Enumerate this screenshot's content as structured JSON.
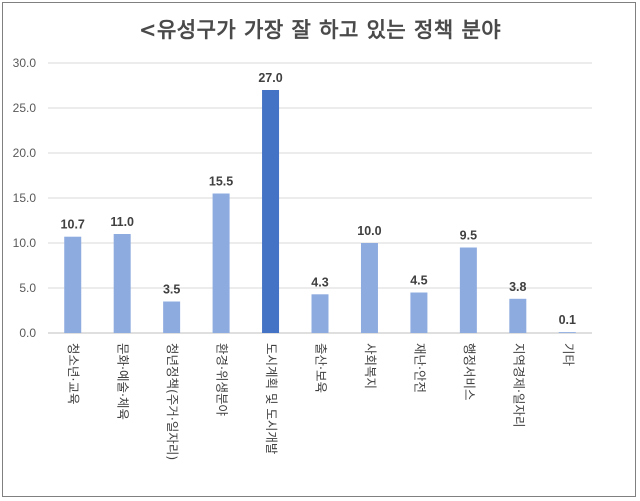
{
  "chart_data": {
    "type": "bar",
    "title": "<유성구가 가장 잘 하고 있는 정책 분야",
    "categories": [
      "청소년·교육",
      "문화·예술·체육",
      "청년정책(주거·일자리)",
      "환경·위생분야",
      "도시계획 및 도시개발",
      "출산·보육",
      "사회복지",
      "재난·안전",
      "행정서비스",
      "지역경제·일자리",
      "기타"
    ],
    "values": [
      10.7,
      11.0,
      3.5,
      15.5,
      27.0,
      4.3,
      10.0,
      4.5,
      9.5,
      3.8,
      0.1
    ],
    "value_labels": [
      "10.7",
      "11.0",
      "3.5",
      "15.5",
      "27.0",
      "4.3",
      "10.0",
      "4.5",
      "9.5",
      "3.8",
      "0.1"
    ],
    "y_ticks": [
      "0.0",
      "5.0",
      "10.0",
      "15.0",
      "20.0",
      "25.0",
      "30.0"
    ],
    "ylim": [
      0,
      30
    ],
    "xlabel": "",
    "ylabel": "",
    "grid": true,
    "colors": {
      "bar": "#8eabe0",
      "highlight": "#4472c4",
      "grid": "#d9d9d9",
      "text": "#404040"
    },
    "highlight_index": 4
  }
}
